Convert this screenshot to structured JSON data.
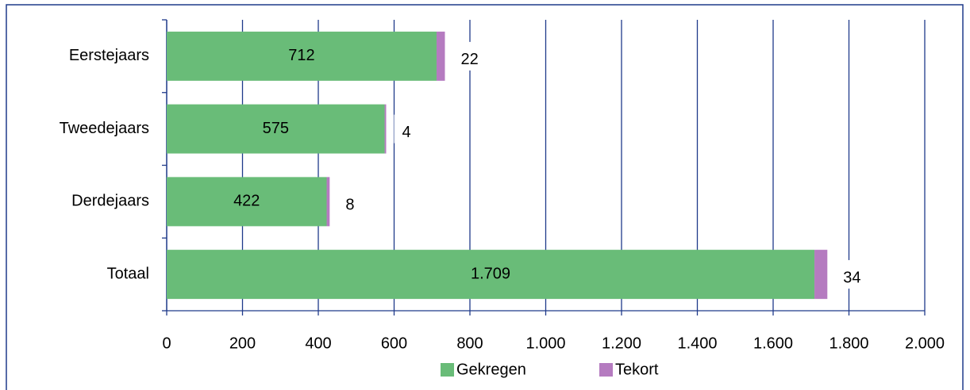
{
  "chart_data": {
    "type": "stacked_barh",
    "categories": [
      "Eerstejaars",
      "Tweedejaars",
      "Derdejaars",
      "Totaal"
    ],
    "series": [
      {
        "name": "Gekregen",
        "color": "#69bc78",
        "values": [
          712,
          575,
          422,
          1709
        ],
        "value_labels": [
          "712",
          "575",
          "422",
          "1.709"
        ]
      },
      {
        "name": "Tekort",
        "color": "#b57bc0",
        "values": [
          22,
          4,
          8,
          34
        ]
      }
    ],
    "xlim": [
      0,
      2000
    ],
    "xticks": [
      0,
      200,
      400,
      600,
      800,
      {
        "value": 1000,
        "label": "1.000"
      },
      {
        "value": 1200,
        "label": "1.200"
      },
      {
        "value": 1400,
        "label": "1.400"
      },
      {
        "value": 1600,
        "label": "1.600"
      },
      {
        "value": 1800,
        "label": "1.800"
      },
      {
        "value": 2000,
        "label": "2.000"
      }
    ],
    "grid": true,
    "legend": "bottom"
  }
}
